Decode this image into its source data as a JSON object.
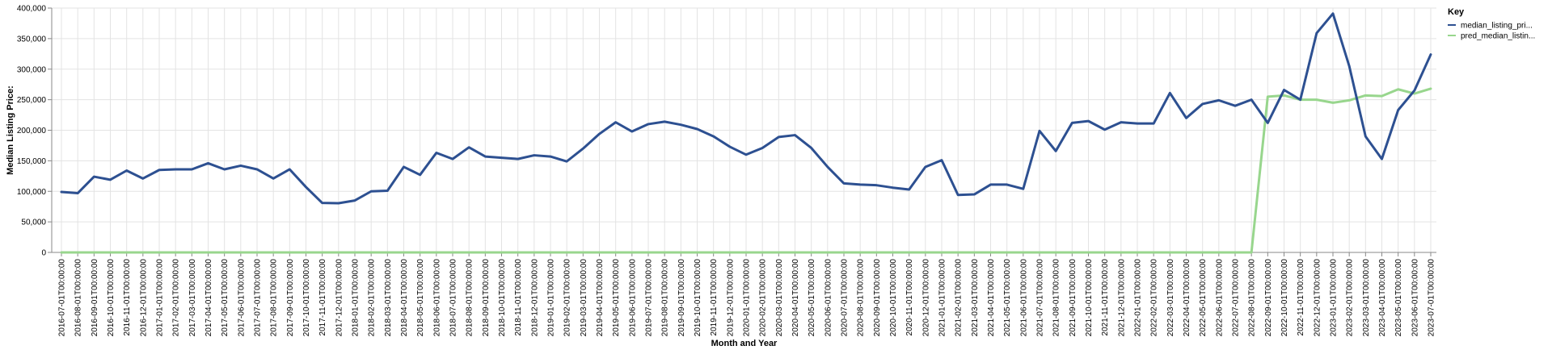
{
  "chart_data": {
    "type": "line",
    "title": "",
    "xlabel": "Month and Year",
    "ylabel": "Median Listing Price:",
    "ylim": [
      0,
      400000
    ],
    "yticks": [
      {
        "value": 0,
        "label": "0"
      },
      {
        "value": 50000,
        "label": "50,000"
      },
      {
        "value": 100000,
        "label": "100,000"
      },
      {
        "value": 150000,
        "label": "150,000"
      },
      {
        "value": 200000,
        "label": "200,000"
      },
      {
        "value": 250000,
        "label": "250,000"
      },
      {
        "value": 300000,
        "label": "300,000"
      },
      {
        "value": 350000,
        "label": "350,000"
      },
      {
        "value": 400000,
        "label": "400,000"
      }
    ],
    "grid": true,
    "categories": [
      "2016-07-01T00:00:00",
      "2016-08-01T00:00:00",
      "2016-09-01T00:00:00",
      "2016-10-01T00:00:00",
      "2016-11-01T00:00:00",
      "2016-12-01T00:00:00",
      "2017-01-01T00:00:00",
      "2017-02-01T00:00:00",
      "2017-03-01T00:00:00",
      "2017-04-01T00:00:00",
      "2017-05-01T00:00:00",
      "2017-06-01T00:00:00",
      "2017-07-01T00:00:00",
      "2017-08-01T00:00:00",
      "2017-09-01T00:00:00",
      "2017-10-01T00:00:00",
      "2017-11-01T00:00:00",
      "2017-12-01T00:00:00",
      "2018-01-01T00:00:00",
      "2018-02-01T00:00:00",
      "2018-03-01T00:00:00",
      "2018-04-01T00:00:00",
      "2018-05-01T00:00:00",
      "2018-06-01T00:00:00",
      "2018-07-01T00:00:00",
      "2018-08-01T00:00:00",
      "2018-09-01T00:00:00",
      "2018-10-01T00:00:00",
      "2018-11-01T00:00:00",
      "2018-12-01T00:00:00",
      "2019-01-01T00:00:00",
      "2019-02-01T00:00:00",
      "2019-03-01T00:00:00",
      "2019-04-01T00:00:00",
      "2019-05-01T00:00:00",
      "2019-06-01T00:00:00",
      "2019-07-01T00:00:00",
      "2019-08-01T00:00:00",
      "2019-09-01T00:00:00",
      "2019-10-01T00:00:00",
      "2019-11-01T00:00:00",
      "2019-12-01T00:00:00",
      "2020-01-01T00:00:00",
      "2020-02-01T00:00:00",
      "2020-03-01T00:00:00",
      "2020-04-01T00:00:00",
      "2020-05-01T00:00:00",
      "2020-06-01T00:00:00",
      "2020-07-01T00:00:00",
      "2020-08-01T00:00:00",
      "2020-09-01T00:00:00",
      "2020-10-01T00:00:00",
      "2020-11-01T00:00:00",
      "2020-12-01T00:00:00",
      "2021-01-01T00:00:00",
      "2021-02-01T00:00:00",
      "2021-03-01T00:00:00",
      "2021-04-01T00:00:00",
      "2021-05-01T00:00:00",
      "2021-06-01T00:00:00",
      "2021-07-01T00:00:00",
      "2021-08-01T00:00:00",
      "2021-09-01T00:00:00",
      "2021-10-01T00:00:00",
      "2021-11-01T00:00:00",
      "2021-12-01T00:00:00",
      "2022-01-01T00:00:00",
      "2022-02-01T00:00:00",
      "2022-03-01T00:00:00",
      "2022-04-01T00:00:00",
      "2022-05-01T00:00:00",
      "2022-06-01T00:00:00",
      "2022-07-01T00:00:00",
      "2022-08-01T00:00:00",
      "2022-09-01T00:00:00",
      "2022-10-01T00:00:00",
      "2022-11-01T00:00:00",
      "2022-12-01T00:00:00",
      "2023-01-01T00:00:00",
      "2023-02-01T00:00:00",
      "2023-03-01T00:00:00",
      "2023-04-01T00:00:00",
      "2023-05-01T00:00:00",
      "2023-06-01T00:00:00",
      "2023-07-01T00:00:00"
    ],
    "series": [
      {
        "name": "median_listing_pri...",
        "color": "#2d5091",
        "values": [
          99000,
          97000,
          124000,
          119000,
          134000,
          121000,
          135000,
          136000,
          136000,
          146000,
          136000,
          142000,
          136000,
          121000,
          136000,
          107000,
          81000,
          80500,
          85000,
          100000,
          101000,
          140000,
          127000,
          163000,
          153000,
          172000,
          157000,
          155000,
          153000,
          159000,
          157000,
          149000,
          170000,
          194000,
          213000,
          198000,
          210000,
          214000,
          209000,
          202000,
          190000,
          173000,
          160000,
          171000,
          189000,
          192000,
          171000,
          140000,
          113000,
          111000,
          110000,
          106000,
          103000,
          140000,
          151000,
          94000,
          95000,
          111000,
          111000,
          104000,
          199000,
          166000,
          212000,
          215000,
          201000,
          213000,
          211000,
          211000,
          261000,
          220000,
          243000,
          249000,
          240000,
          250000,
          212000,
          266000,
          250000,
          359000,
          391000,
          305000,
          190000,
          153000,
          233000,
          265000,
          324000
        ]
      },
      {
        "name": "pred_median_listin...",
        "color": "#98d68d",
        "values": [
          0,
          0,
          0,
          0,
          0,
          0,
          0,
          0,
          0,
          0,
          0,
          0,
          0,
          0,
          0,
          0,
          0,
          0,
          0,
          0,
          0,
          0,
          0,
          0,
          0,
          0,
          0,
          0,
          0,
          0,
          0,
          0,
          0,
          0,
          0,
          0,
          0,
          0,
          0,
          0,
          0,
          0,
          0,
          0,
          0,
          0,
          0,
          0,
          0,
          0,
          0,
          0,
          0,
          0,
          0,
          0,
          0,
          0,
          0,
          0,
          0,
          0,
          0,
          0,
          0,
          0,
          0,
          0,
          0,
          0,
          0,
          0,
          0,
          0,
          255000,
          257000,
          250000,
          250000,
          245000,
          249000,
          257000,
          256000,
          267000,
          260000,
          268000
        ]
      }
    ],
    "legend": {
      "title": "Key",
      "position": "top-right"
    }
  }
}
